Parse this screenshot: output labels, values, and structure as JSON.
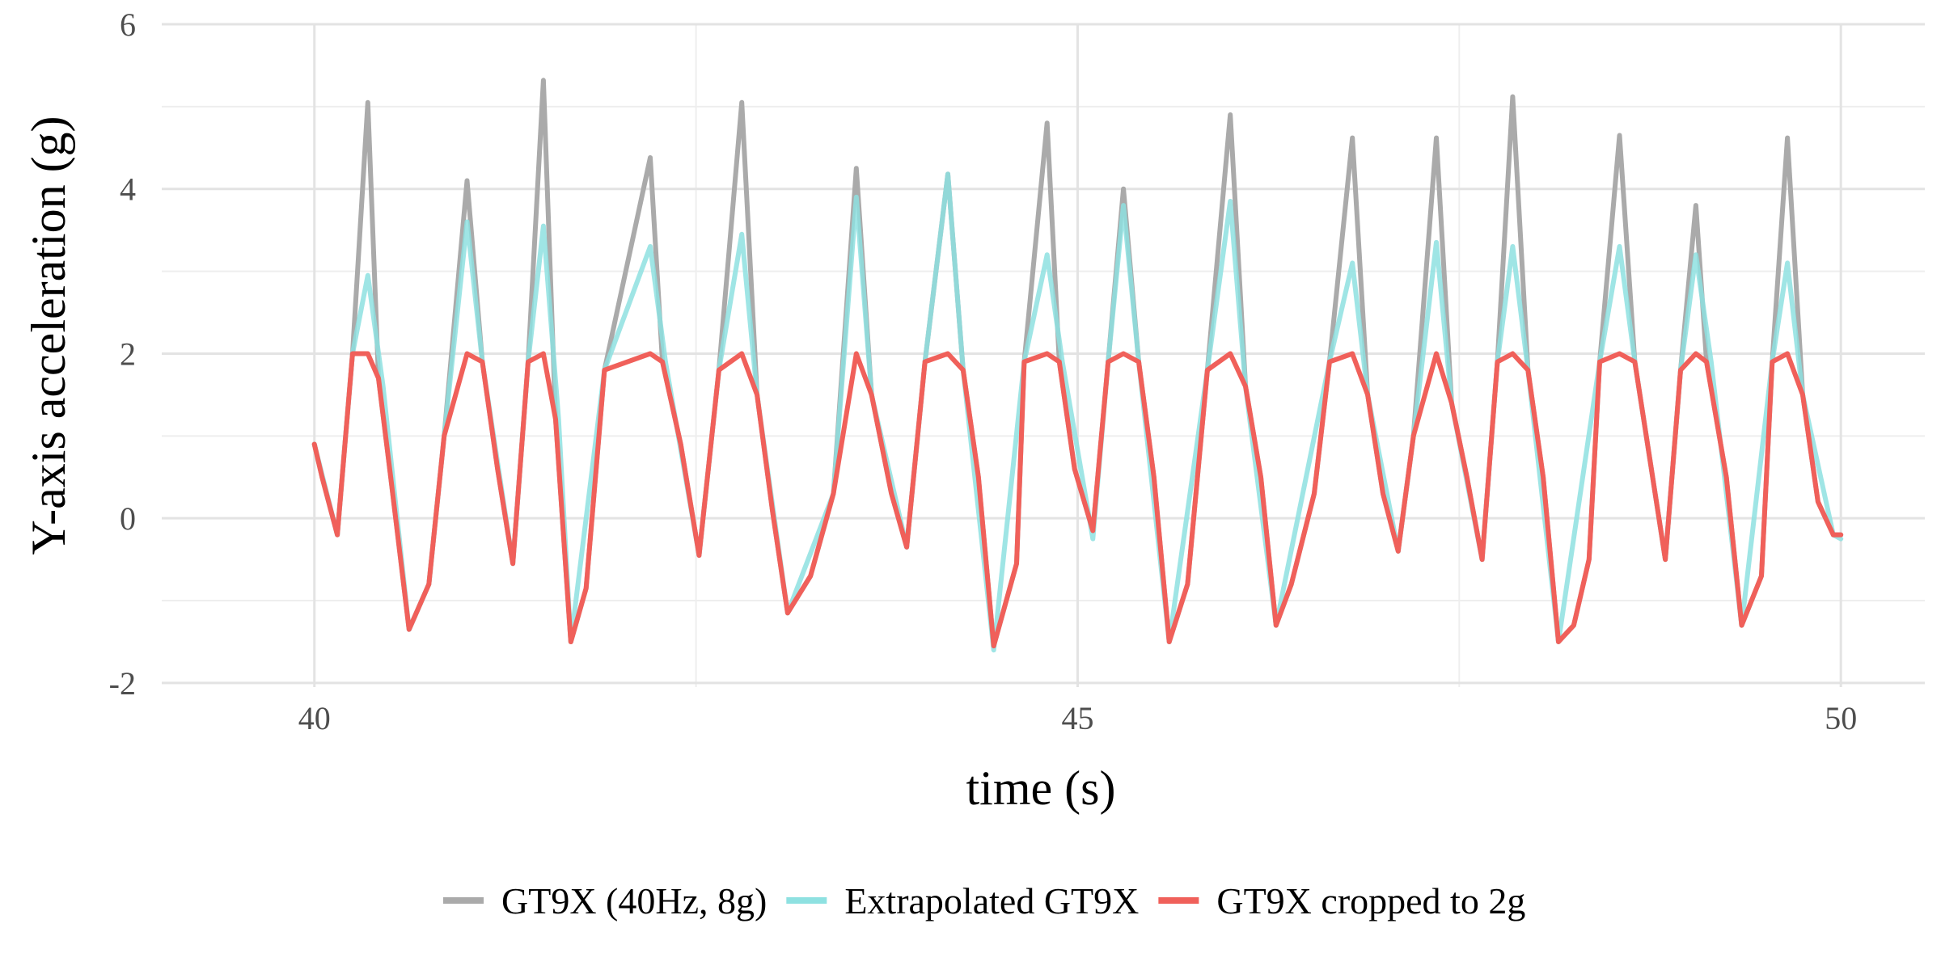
{
  "chart_data": {
    "type": "line",
    "title": "",
    "xlabel": "time (s)",
    "ylabel": "Y-axis acceleration (g)",
    "xlim": [
      39.0,
      50.55
    ],
    "ylim": [
      -2.05,
      6.0
    ],
    "x_ticks": [
      40,
      45,
      50
    ],
    "x_tick_labels": [
      "40",
      "45",
      "50"
    ],
    "y_ticks": [
      -2,
      0,
      2,
      4,
      6
    ],
    "y_tick_labels": [
      "-2",
      "0",
      "2",
      "4",
      "6"
    ],
    "grid": true,
    "legend_position": "bottom",
    "series": [
      {
        "name": "GT9X (40Hz, 8g)",
        "color": "#aaaaaa",
        "points": [
          [
            40.0,
            0.9
          ],
          [
            40.05,
            0.5
          ],
          [
            40.15,
            -0.2
          ],
          [
            40.25,
            2.0
          ],
          [
            40.35,
            5.05
          ],
          [
            40.42,
            1.7
          ],
          [
            40.5,
            0.5
          ],
          [
            40.62,
            -1.35
          ],
          [
            40.75,
            -0.8
          ],
          [
            40.85,
            1.0
          ],
          [
            41.0,
            4.1
          ],
          [
            41.1,
            1.9
          ],
          [
            41.2,
            0.6
          ],
          [
            41.3,
            -0.55
          ],
          [
            41.4,
            1.9
          ],
          [
            41.5,
            5.32
          ],
          [
            41.58,
            1.2
          ],
          [
            41.68,
            -1.5
          ],
          [
            41.78,
            -0.85
          ],
          [
            41.9,
            1.8
          ],
          [
            42.2,
            4.38
          ],
          [
            42.28,
            1.9
          ],
          [
            42.4,
            0.9
          ],
          [
            42.52,
            -0.45
          ],
          [
            42.65,
            1.8
          ],
          [
            42.8,
            5.05
          ],
          [
            42.9,
            1.5
          ],
          [
            43.0,
            0.1
          ],
          [
            43.1,
            -1.15
          ],
          [
            43.25,
            -0.7
          ],
          [
            43.4,
            0.3
          ],
          [
            43.55,
            4.25
          ],
          [
            43.65,
            1.5
          ],
          [
            43.78,
            0.3
          ],
          [
            43.88,
            -0.35
          ],
          [
            44.0,
            1.9
          ],
          [
            44.15,
            4.18
          ],
          [
            44.25,
            1.8
          ],
          [
            44.35,
            0.5
          ],
          [
            44.45,
            -1.55
          ],
          [
            44.6,
            -0.55
          ],
          [
            44.65,
            1.9
          ],
          [
            44.8,
            4.8
          ],
          [
            44.88,
            1.9
          ],
          [
            44.98,
            0.6
          ],
          [
            45.1,
            -0.15
          ],
          [
            45.2,
            1.9
          ],
          [
            45.3,
            4.0
          ],
          [
            45.4,
            1.9
          ],
          [
            45.5,
            0.5
          ],
          [
            45.6,
            -1.5
          ],
          [
            45.72,
            -0.8
          ],
          [
            45.85,
            1.8
          ],
          [
            46.0,
            4.9
          ],
          [
            46.1,
            1.6
          ],
          [
            46.2,
            0.5
          ],
          [
            46.3,
            -1.3
          ],
          [
            46.4,
            -0.8
          ],
          [
            46.55,
            0.3
          ],
          [
            46.65,
            1.9
          ],
          [
            46.8,
            4.62
          ],
          [
            46.9,
            1.5
          ],
          [
            47.0,
            0.3
          ],
          [
            47.1,
            -0.4
          ],
          [
            47.2,
            1.0
          ],
          [
            47.35,
            4.62
          ],
          [
            47.45,
            1.4
          ],
          [
            47.55,
            0.5
          ],
          [
            47.65,
            -0.5
          ],
          [
            47.75,
            1.9
          ],
          [
            47.85,
            5.12
          ],
          [
            47.95,
            1.8
          ],
          [
            48.05,
            0.5
          ],
          [
            48.15,
            -1.5
          ],
          [
            48.25,
            -1.3
          ],
          [
            48.35,
            -0.5
          ],
          [
            48.42,
            1.9
          ],
          [
            48.55,
            4.65
          ],
          [
            48.65,
            1.9
          ],
          [
            48.75,
            0.7
          ],
          [
            48.85,
            -0.5
          ],
          [
            48.95,
            1.8
          ],
          [
            49.05,
            3.8
          ],
          [
            49.12,
            1.9
          ],
          [
            49.25,
            0.5
          ],
          [
            49.35,
            -1.3
          ],
          [
            49.48,
            -0.7
          ],
          [
            49.55,
            1.9
          ],
          [
            49.65,
            4.62
          ],
          [
            49.75,
            1.5
          ],
          [
            49.85,
            0.2
          ],
          [
            49.95,
            -0.2
          ],
          [
            50.0,
            -0.2
          ]
        ]
      },
      {
        "name": "Extrapolated GT9X",
        "color": "#8ee1e1",
        "points": [
          [
            40.0,
            0.9
          ],
          [
            40.15,
            -0.2
          ],
          [
            40.25,
            2.0
          ],
          [
            40.35,
            2.95
          ],
          [
            40.45,
            1.6
          ],
          [
            40.62,
            -1.35
          ],
          [
            40.75,
            -0.8
          ],
          [
            40.85,
            1.0
          ],
          [
            41.0,
            3.6
          ],
          [
            41.1,
            1.9
          ],
          [
            41.3,
            -0.55
          ],
          [
            41.4,
            1.9
          ],
          [
            41.5,
            3.55
          ],
          [
            41.6,
            1.2
          ],
          [
            41.68,
            -1.5
          ],
          [
            41.9,
            1.8
          ],
          [
            42.2,
            3.3
          ],
          [
            42.3,
            1.9
          ],
          [
            42.52,
            -0.45
          ],
          [
            42.65,
            1.8
          ],
          [
            42.8,
            3.45
          ],
          [
            42.9,
            1.5
          ],
          [
            43.1,
            -1.15
          ],
          [
            43.4,
            0.3
          ],
          [
            43.55,
            3.9
          ],
          [
            43.65,
            1.5
          ],
          [
            43.88,
            -0.35
          ],
          [
            44.0,
            1.9
          ],
          [
            44.15,
            4.18
          ],
          [
            44.25,
            1.8
          ],
          [
            44.45,
            -1.6
          ],
          [
            44.65,
            1.9
          ],
          [
            44.8,
            3.2
          ],
          [
            44.9,
            1.9
          ],
          [
            45.1,
            -0.25
          ],
          [
            45.2,
            1.9
          ],
          [
            45.3,
            3.8
          ],
          [
            45.4,
            1.9
          ],
          [
            45.6,
            -1.5
          ],
          [
            45.85,
            1.8
          ],
          [
            46.0,
            3.85
          ],
          [
            46.1,
            1.6
          ],
          [
            46.3,
            -1.3
          ],
          [
            46.65,
            1.9
          ],
          [
            46.8,
            3.1
          ],
          [
            46.9,
            1.5
          ],
          [
            47.1,
            -0.4
          ],
          [
            47.2,
            1.0
          ],
          [
            47.35,
            3.35
          ],
          [
            47.45,
            1.4
          ],
          [
            47.65,
            -0.5
          ],
          [
            47.75,
            1.9
          ],
          [
            47.85,
            3.3
          ],
          [
            47.95,
            1.8
          ],
          [
            48.15,
            -1.5
          ],
          [
            48.42,
            1.9
          ],
          [
            48.55,
            3.3
          ],
          [
            48.65,
            1.9
          ],
          [
            48.85,
            -0.5
          ],
          [
            48.95,
            1.8
          ],
          [
            49.05,
            3.2
          ],
          [
            49.15,
            1.9
          ],
          [
            49.35,
            -1.3
          ],
          [
            49.55,
            1.9
          ],
          [
            49.65,
            3.1
          ],
          [
            49.75,
            1.5
          ],
          [
            49.95,
            -0.2
          ],
          [
            50.0,
            -0.25
          ]
        ]
      },
      {
        "name": "GT9X cropped to 2g",
        "color": "#f0605a",
        "points": [
          [
            40.0,
            0.9
          ],
          [
            40.05,
            0.5
          ],
          [
            40.15,
            -0.2
          ],
          [
            40.25,
            2.0
          ],
          [
            40.35,
            2.0
          ],
          [
            40.42,
            1.7
          ],
          [
            40.5,
            0.5
          ],
          [
            40.62,
            -1.35
          ],
          [
            40.75,
            -0.8
          ],
          [
            40.85,
            1.0
          ],
          [
            41.0,
            2.0
          ],
          [
            41.1,
            1.9
          ],
          [
            41.2,
            0.6
          ],
          [
            41.3,
            -0.55
          ],
          [
            41.4,
            1.9
          ],
          [
            41.5,
            2.0
          ],
          [
            41.58,
            1.2
          ],
          [
            41.68,
            -1.5
          ],
          [
            41.78,
            -0.85
          ],
          [
            41.9,
            1.8
          ],
          [
            42.2,
            2.0
          ],
          [
            42.28,
            1.9
          ],
          [
            42.4,
            0.9
          ],
          [
            42.52,
            -0.45
          ],
          [
            42.65,
            1.8
          ],
          [
            42.8,
            2.0
          ],
          [
            42.9,
            1.5
          ],
          [
            43.0,
            0.1
          ],
          [
            43.1,
            -1.15
          ],
          [
            43.25,
            -0.7
          ],
          [
            43.4,
            0.3
          ],
          [
            43.55,
            2.0
          ],
          [
            43.65,
            1.5
          ],
          [
            43.78,
            0.3
          ],
          [
            43.88,
            -0.35
          ],
          [
            44.0,
            1.9
          ],
          [
            44.15,
            2.0
          ],
          [
            44.25,
            1.8
          ],
          [
            44.35,
            0.5
          ],
          [
            44.45,
            -1.55
          ],
          [
            44.6,
            -0.55
          ],
          [
            44.65,
            1.9
          ],
          [
            44.8,
            2.0
          ],
          [
            44.88,
            1.9
          ],
          [
            44.98,
            0.6
          ],
          [
            45.1,
            -0.15
          ],
          [
            45.2,
            1.9
          ],
          [
            45.3,
            2.0
          ],
          [
            45.4,
            1.9
          ],
          [
            45.5,
            0.5
          ],
          [
            45.6,
            -1.5
          ],
          [
            45.72,
            -0.8
          ],
          [
            45.85,
            1.8
          ],
          [
            46.0,
            2.0
          ],
          [
            46.1,
            1.6
          ],
          [
            46.2,
            0.5
          ],
          [
            46.3,
            -1.3
          ],
          [
            46.4,
            -0.8
          ],
          [
            46.55,
            0.3
          ],
          [
            46.65,
            1.9
          ],
          [
            46.8,
            2.0
          ],
          [
            46.9,
            1.5
          ],
          [
            47.0,
            0.3
          ],
          [
            47.1,
            -0.4
          ],
          [
            47.2,
            1.0
          ],
          [
            47.35,
            2.0
          ],
          [
            47.45,
            1.4
          ],
          [
            47.55,
            0.5
          ],
          [
            47.65,
            -0.5
          ],
          [
            47.75,
            1.9
          ],
          [
            47.85,
            2.0
          ],
          [
            47.95,
            1.8
          ],
          [
            48.05,
            0.5
          ],
          [
            48.15,
            -1.5
          ],
          [
            48.25,
            -1.3
          ],
          [
            48.35,
            -0.5
          ],
          [
            48.42,
            1.9
          ],
          [
            48.55,
            2.0
          ],
          [
            48.65,
            1.9
          ],
          [
            48.75,
            0.7
          ],
          [
            48.85,
            -0.5
          ],
          [
            48.95,
            1.8
          ],
          [
            49.05,
            2.0
          ],
          [
            49.12,
            1.9
          ],
          [
            49.25,
            0.5
          ],
          [
            49.35,
            -1.3
          ],
          [
            49.48,
            -0.7
          ],
          [
            49.55,
            1.9
          ],
          [
            49.65,
            2.0
          ],
          [
            49.75,
            1.5
          ],
          [
            49.85,
            0.2
          ],
          [
            49.95,
            -0.2
          ],
          [
            50.0,
            -0.2
          ]
        ]
      }
    ]
  }
}
